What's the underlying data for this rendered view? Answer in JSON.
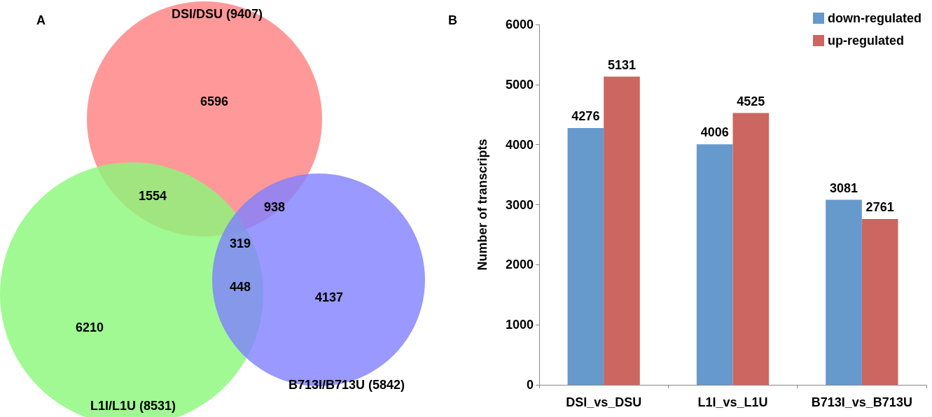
{
  "chart_data": [
    {
      "type": "other",
      "title": "A",
      "categories": [
        "DSI/DSU (9407)",
        "L1I/L1U (8531)",
        "B713I/B713U (5842)"
      ],
      "colors": [
        "#ff8080",
        "#88f878",
        "#8080ff"
      ],
      "annotations": [
        "6596",
        "1554",
        "938",
        "319",
        "448",
        "6210",
        "4137"
      ]
    },
    {
      "type": "bar",
      "title": "B",
      "ylabel": "Number of transcripts",
      "categories": [
        "DSI_vs_DSU",
        "L1I_vs_L1U",
        "B713I_vs_B713U"
      ],
      "series": [
        {
          "name": "down-regulated",
          "color": "#6699cc",
          "values": [
            4276,
            4006,
            3081
          ]
        },
        {
          "name": "up-regulated",
          "color": "#cc6660",
          "values": [
            5131,
            4525,
            2761
          ]
        }
      ],
      "ylim": [
        0,
        6000
      ],
      "yticks": [
        0,
        1000,
        2000,
        3000,
        4000,
        5000,
        6000
      ],
      "data_labels": true,
      "legend": "top right",
      "grid": false
    }
  ]
}
